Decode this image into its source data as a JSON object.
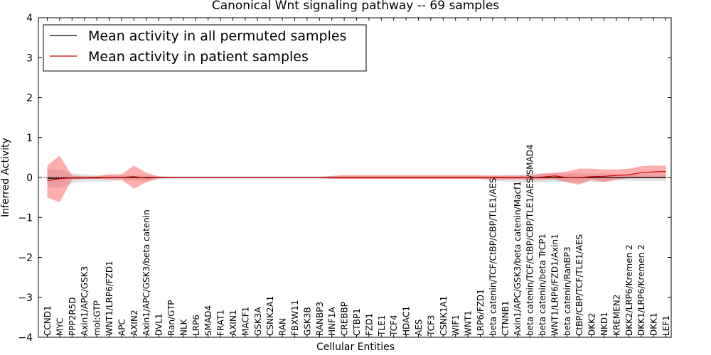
{
  "chart_data": {
    "type": "line",
    "title": "Canonical Wnt signaling pathway -- 69 samples",
    "xlabel": "Cellular Entities",
    "ylabel": "Inferred Activity",
    "ylim": [
      -4,
      4
    ],
    "yticks": [
      -4,
      -3,
      -2,
      -1,
      0,
      1,
      2,
      3,
      4
    ],
    "ytick_labels": [
      "−4",
      "−3",
      "−2",
      "−1",
      "0",
      "1",
      "2",
      "3",
      "4"
    ],
    "legend_position": "top-left",
    "grid": false,
    "categories": [
      "CCND1",
      "MYC",
      "PPP2R5D",
      "Axin1/APC/GSK3",
      "mol:GTP",
      "WNT1/LRP6/FZD1",
      "APC",
      "AXIN2",
      "Axin1/APC/GSK3/beta catenin",
      "DVL1",
      "Ran/GTP",
      "NLK",
      "LRP6",
      "SMAD4",
      "FRAT1",
      "AXIN1",
      "MACF1",
      "GSK3A",
      "CSNK2A1",
      "RAN",
      "FBXW11",
      "GSK3B",
      "RANBP3",
      "HNF1A",
      "CREBBP",
      "CTBP1",
      "FZD1",
      "TLE1",
      "TCF4",
      "HDAC1",
      "AES",
      "TCF3",
      "CSNK1A1",
      "WIF1",
      "WNT1",
      "LRP6/FZD1",
      "beta catenin/TCF/CtBP/CBP/TLE1/AES",
      "CTNNB1",
      "Axin1/APC/GSK3/beta catenin/Macf1",
      "beta catenin/TCF/CtBP/CBP/TLE1/AES/SMAD4",
      "beta catenin/beta TrCP1",
      "WNT1/LRP6/FZD1/Axin1",
      "beta catenin/RanBP3",
      "CtBP/CBP/TCF/TLE1/AES",
      "DKK2",
      "NKD1",
      "KREMEN2",
      "DKK2/LRP6/Kremen 2",
      "DKK1/LRP6/Kremen 2",
      "DKK1",
      "LEF1"
    ],
    "series": [
      {
        "name": "Mean activity in all permuted samples",
        "color": "#000000",
        "values": [
          -0.02,
          -0.02,
          -0.01,
          -0.01,
          -0.01,
          0.0,
          0.0,
          0.0,
          0.0,
          0.0,
          0.0,
          0.0,
          0.0,
          0.0,
          0.0,
          0.0,
          0.0,
          0.0,
          0.0,
          0.0,
          0.0,
          0.0,
          0.0,
          0.0,
          0.0,
          0.0,
          0.0,
          0.0,
          0.0,
          0.0,
          0.0,
          0.0,
          0.0,
          0.0,
          0.0,
          0.0,
          0.0,
          0.0,
          0.0,
          0.0,
          0.0,
          0.0,
          0.0,
          0.0,
          0.0,
          0.0,
          0.0,
          0.0,
          0.0,
          0.0,
          0.0
        ],
        "band_upper": [
          0.2,
          0.2,
          0.1,
          0.08,
          0.06,
          0.05,
          0.05,
          0.05,
          0.05,
          0.03,
          0.03,
          0.03,
          0.03,
          0.03,
          0.03,
          0.03,
          0.03,
          0.03,
          0.03,
          0.03,
          0.03,
          0.03,
          0.03,
          0.03,
          0.03,
          0.03,
          0.03,
          0.03,
          0.03,
          0.03,
          0.03,
          0.03,
          0.03,
          0.03,
          0.03,
          0.03,
          0.05,
          0.06,
          0.07,
          0.08,
          0.1,
          0.1,
          0.1,
          0.1,
          0.1,
          0.1,
          0.08,
          0.08,
          0.08,
          0.08,
          0.08
        ],
        "band_lower": [
          -0.25,
          -0.25,
          -0.15,
          -0.1,
          -0.1,
          -0.1,
          -0.08,
          -0.08,
          -0.08,
          -0.05,
          -0.03,
          -0.03,
          -0.03,
          -0.03,
          -0.03,
          -0.03,
          -0.03,
          -0.03,
          -0.03,
          -0.03,
          -0.03,
          -0.03,
          -0.03,
          -0.03,
          -0.03,
          -0.03,
          -0.03,
          -0.03,
          -0.03,
          -0.03,
          -0.03,
          -0.03,
          -0.03,
          -0.03,
          -0.03,
          -0.03,
          -0.08,
          -0.1,
          -0.12,
          -0.12,
          -0.12,
          -0.1,
          -0.12,
          -0.12,
          -0.12,
          -0.1,
          -0.08,
          -0.08,
          -0.08,
          -0.08,
          -0.08
        ]
      },
      {
        "name": "Mean activity in patient samples",
        "color": "#cc0000",
        "values": [
          -0.08,
          -0.03,
          -0.01,
          -0.01,
          0.0,
          0.0,
          0.0,
          0.02,
          -0.01,
          0.0,
          0.0,
          0.0,
          0.0,
          0.0,
          0.0,
          0.0,
          0.0,
          0.0,
          0.0,
          0.0,
          0.0,
          0.0,
          0.0,
          0.0,
          0.0,
          0.0,
          0.0,
          0.0,
          0.0,
          0.0,
          0.0,
          0.0,
          0.0,
          0.0,
          0.0,
          0.0,
          0.0,
          0.0,
          0.0,
          0.0,
          0.01,
          0.04,
          0.0,
          0.0,
          0.02,
          0.03,
          0.05,
          0.07,
          0.12,
          0.14,
          0.15
        ],
        "band_upper": [
          0.3,
          0.55,
          0.05,
          0.03,
          0.03,
          0.08,
          0.08,
          0.3,
          0.12,
          0.03,
          0.01,
          0.01,
          0.01,
          0.01,
          0.01,
          0.01,
          0.01,
          0.01,
          0.01,
          0.01,
          0.01,
          0.01,
          0.01,
          0.04,
          0.06,
          0.06,
          0.06,
          0.06,
          0.06,
          0.06,
          0.06,
          0.06,
          0.06,
          0.06,
          0.06,
          0.06,
          0.05,
          0.05,
          0.05,
          0.05,
          0.1,
          0.12,
          0.15,
          0.22,
          0.22,
          0.2,
          0.2,
          0.22,
          0.28,
          0.3,
          0.3
        ],
        "band_lower": [
          -0.5,
          -0.62,
          -0.05,
          -0.03,
          -0.03,
          -0.05,
          -0.05,
          -0.28,
          -0.12,
          -0.02,
          -0.01,
          -0.01,
          -0.01,
          -0.01,
          -0.01,
          -0.01,
          -0.01,
          -0.01,
          -0.01,
          -0.01,
          -0.01,
          -0.01,
          -0.01,
          -0.03,
          -0.04,
          -0.04,
          -0.04,
          -0.04,
          -0.04,
          -0.04,
          -0.04,
          -0.04,
          -0.04,
          -0.04,
          -0.04,
          -0.04,
          -0.05,
          -0.05,
          -0.05,
          -0.05,
          -0.06,
          -0.05,
          -0.12,
          -0.18,
          -0.05,
          -0.12,
          -0.05,
          -0.02,
          -0.02,
          -0.02,
          -0.02
        ]
      }
    ]
  }
}
